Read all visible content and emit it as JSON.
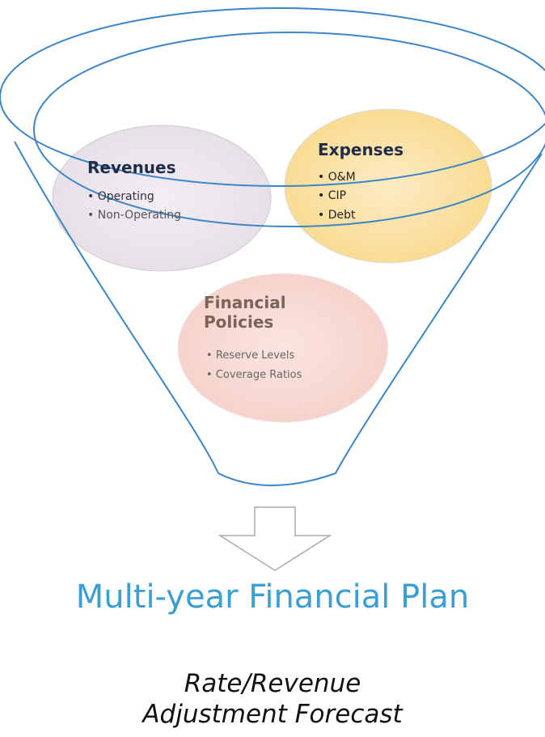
{
  "nodes": [
    {
      "title": "Revenues",
      "items": [
        "Operating",
        "Non-Operating"
      ]
    },
    {
      "title": "Expenses",
      "items": [
        "O&M",
        "CIP",
        "Debt"
      ]
    },
    {
      "title": "Financial Policies",
      "items": [
        "Reserve Levels",
        "Coverage Ratios"
      ]
    }
  ],
  "output": {
    "title": "Multi-year Financial Plan",
    "subtitle": "Rate/Revenue Adjustment Forecast"
  }
}
